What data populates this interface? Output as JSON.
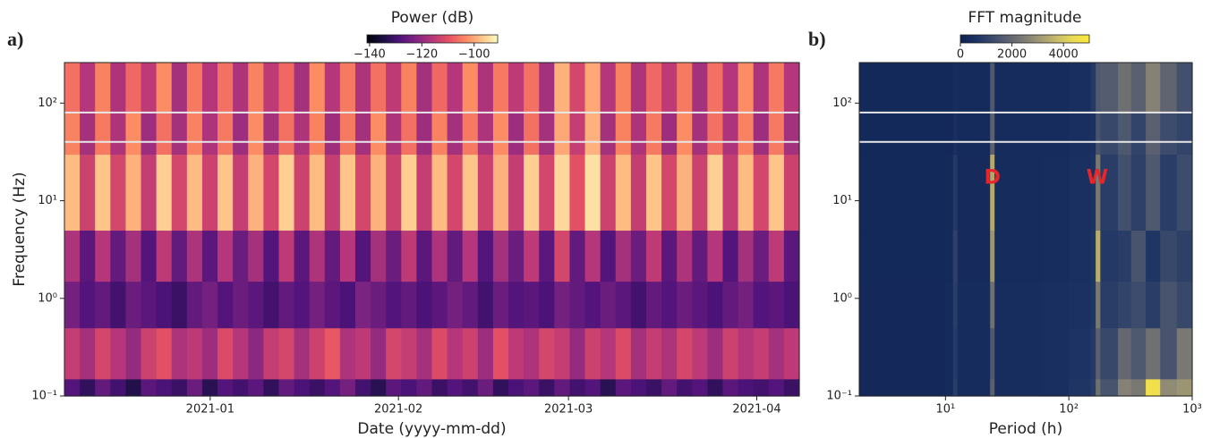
{
  "chart_data": [
    {
      "type": "heatmap",
      "panel_label": "a)",
      "colorbar_label": "Power (dB)",
      "colormap": "magma",
      "clim": [
        -141,
        -91
      ],
      "cticks": [
        {
          "value": -140,
          "label": "−140"
        },
        {
          "value": -120,
          "label": "−120"
        },
        {
          "value": -100,
          "label": "−100"
        }
      ],
      "xlabel": "Date (yyyy-mm-dd)",
      "ylabel": "Frequency (Hz)",
      "xlim": [
        -24,
        97
      ],
      "xticks": [
        {
          "value": 0,
          "label": "2021-01"
        },
        {
          "value": 31,
          "label": "2021-02"
        },
        {
          "value": 59,
          "label": "2021-03"
        },
        {
          "value": 90,
          "label": "2021-04"
        }
      ],
      "yscale": "log",
      "ylim": [
        0.1,
        260
      ],
      "yticks": [
        {
          "value": 0.1,
          "label": "10⁻¹"
        },
        {
          "value": 1,
          "label": "10⁰"
        },
        {
          "value": 10,
          "label": "10¹"
        },
        {
          "value": 100,
          "label": "10²"
        }
      ],
      "y_edges": [
        0.1,
        0.15,
        0.5,
        1.5,
        5,
        30,
        80,
        260
      ],
      "hlines": [
        40,
        80
      ],
      "z": [
        [
          -128,
          -132,
          -126,
          -130,
          -134,
          -127,
          -129,
          -131,
          -125,
          -133,
          -128,
          -130,
          -127,
          -132,
          -126,
          -129,
          -131,
          -128,
          -124,
          -130,
          -133,
          -127,
          -129,
          -126,
          -131,
          -128,
          -130,
          -125,
          -132,
          -129,
          -127,
          -131,
          -126,
          -130,
          -128,
          -133,
          -127,
          -129,
          -131,
          -126,
          -130,
          -128,
          -132,
          -127,
          -129,
          -130,
          -128,
          -131
        ],
        [
          -114,
          -118,
          -112,
          -116,
          -120,
          -113,
          -110,
          -117,
          -115,
          -119,
          -111,
          -116,
          -121,
          -114,
          -112,
          -118,
          -113,
          -109,
          -117,
          -115,
          -120,
          -112,
          -114,
          -118,
          -111,
          -116,
          -113,
          -119,
          -110,
          -115,
          -117,
          -112,
          -114,
          -120,
          -113,
          -116,
          -111,
          -118,
          -114,
          -117,
          -112,
          -115,
          -119,
          -113,
          -116,
          -114,
          -118,
          -115
        ],
        [
          -124,
          -128,
          -126,
          -130,
          -125,
          -127,
          -129,
          -131,
          -126,
          -124,
          -128,
          -125,
          -127,
          -130,
          -126,
          -128,
          -124,
          -127,
          -129,
          -123,
          -125,
          -128,
          -126,
          -129,
          -127,
          -124,
          -126,
          -130,
          -125,
          -128,
          -127,
          -129,
          -124,
          -126,
          -128,
          -125,
          -127,
          -130,
          -126,
          -128,
          -125,
          -127,
          -129,
          -126,
          -124,
          -128,
          -127,
          -129
        ],
        [
          -117,
          -127,
          -116,
          -126,
          -118,
          -128,
          -115,
          -126,
          -117,
          -127,
          -116,
          -125,
          -118,
          -128,
          -115,
          -127,
          -117,
          -126,
          -116,
          -128,
          -118,
          -125,
          -115,
          -127,
          -117,
          -126,
          -116,
          -128,
          -118,
          -125,
          -115,
          -127,
          -112,
          -126,
          -116,
          -128,
          -118,
          -125,
          -115,
          -127,
          -117,
          -126,
          -116,
          -128,
          -118,
          -125,
          -115,
          -127
        ],
        [
          -98,
          -113,
          -97,
          -112,
          -99,
          -114,
          -96,
          -112,
          -98,
          -113,
          -97,
          -114,
          -99,
          -112,
          -96,
          -113,
          -98,
          -114,
          -97,
          -112,
          -99,
          -113,
          -96,
          -114,
          -98,
          -112,
          -97,
          -113,
          -99,
          -114,
          -96,
          -112,
          -95,
          -110,
          -94,
          -113,
          -98,
          -114,
          -97,
          -112,
          -99,
          -113,
          -96,
          -114,
          -98,
          -112,
          -97,
          -113
        ],
        [
          -104,
          -118,
          -105,
          -117,
          -103,
          -119,
          -106,
          -118,
          -104,
          -117,
          -105,
          -119,
          -103,
          -118,
          -106,
          -117,
          -104,
          -119,
          -105,
          -118,
          -103,
          -117,
          -106,
          -119,
          -104,
          -118,
          -105,
          -117,
          -103,
          -119,
          -106,
          -118,
          -100,
          -114,
          -99,
          -118,
          -104,
          -117,
          -105,
          -119,
          -103,
          -118,
          -106,
          -117,
          -104,
          -119,
          -105,
          -118
        ],
        [
          -106,
          -116,
          -104,
          -117,
          -107,
          -115,
          -103,
          -118,
          -105,
          -116,
          -106,
          -117,
          -104,
          -115,
          -107,
          -118,
          -103,
          -116,
          -105,
          -117,
          -106,
          -115,
          -104,
          -118,
          -107,
          -116,
          -103,
          -117,
          -105,
          -115,
          -106,
          -118,
          -99,
          -112,
          -100,
          -116,
          -104,
          -117,
          -107,
          -115,
          -105,
          -118,
          -106,
          -116,
          -103,
          -117,
          -105,
          -116
        ]
      ]
    },
    {
      "type": "heatmap",
      "panel_label": "b)",
      "colorbar_label": "FFT magnitude",
      "colormap": "cividis",
      "clim": [
        0,
        5000
      ],
      "cticks": [
        0,
        2000,
        4000
      ],
      "xlabel": "Period (h)",
      "xscale": "log",
      "xlim": [
        2,
        1000
      ],
      "xticks": [
        {
          "value": 10,
          "label": "10¹"
        },
        {
          "value": 100,
          "label": "10²"
        },
        {
          "value": 1000,
          "label": "10³"
        }
      ],
      "yscale": "log",
      "ylim": [
        0.1,
        260
      ],
      "yticks": [
        {
          "value": 0.1,
          "label": "10⁻¹"
        },
        {
          "value": 1,
          "label": "10⁰"
        },
        {
          "value": 10,
          "label": "10¹"
        },
        {
          "value": 100,
          "label": "10²"
        }
      ],
      "x_edges": [
        2,
        10,
        11.5,
        12.5,
        23,
        25,
        60,
        100,
        150,
        165,
        180,
        250,
        320,
        420,
        550,
        750,
        1000
      ],
      "y_edges": [
        0.1,
        0.15,
        0.5,
        1.5,
        5,
        30,
        80,
        260
      ],
      "hlines": [
        40,
        80
      ],
      "annotations": [
        {
          "text": "D",
          "x": 24,
          "y": 17
        },
        {
          "text": "W",
          "x": 170,
          "y": 17
        }
      ],
      "annotation_color": "#e8262a",
      "z": [
        [
          300,
          350,
          900,
          400,
          1800,
          450,
          500,
          700,
          900,
          2200,
          1500,
          2600,
          2400,
          4600,
          2800,
          3000
        ],
        [
          300,
          350,
          800,
          400,
          1600,
          450,
          500,
          650,
          800,
          1800,
          1200,
          2000,
          1600,
          2200,
          1500,
          2400
        ],
        [
          300,
          350,
          900,
          400,
          2200,
          450,
          500,
          600,
          700,
          2400,
          900,
          1100,
          1300,
          900,
          1500,
          1200
        ],
        [
          280,
          320,
          1000,
          380,
          3000,
          420,
          450,
          550,
          700,
          3500,
          800,
          900,
          1500,
          700,
          1200,
          1000
        ],
        [
          280,
          320,
          800,
          380,
          3400,
          420,
          450,
          550,
          650,
          2400,
          900,
          1400,
          1000,
          1600,
          900,
          1300
        ],
        [
          280,
          300,
          500,
          350,
          1800,
          400,
          420,
          500,
          600,
          1500,
          1200,
          1600,
          1100,
          1800,
          1300,
          1100
        ],
        [
          280,
          300,
          450,
          350,
          1600,
          400,
          420,
          500,
          800,
          1600,
          1700,
          2200,
          1800,
          2600,
          1900,
          1400
        ]
      ]
    }
  ]
}
